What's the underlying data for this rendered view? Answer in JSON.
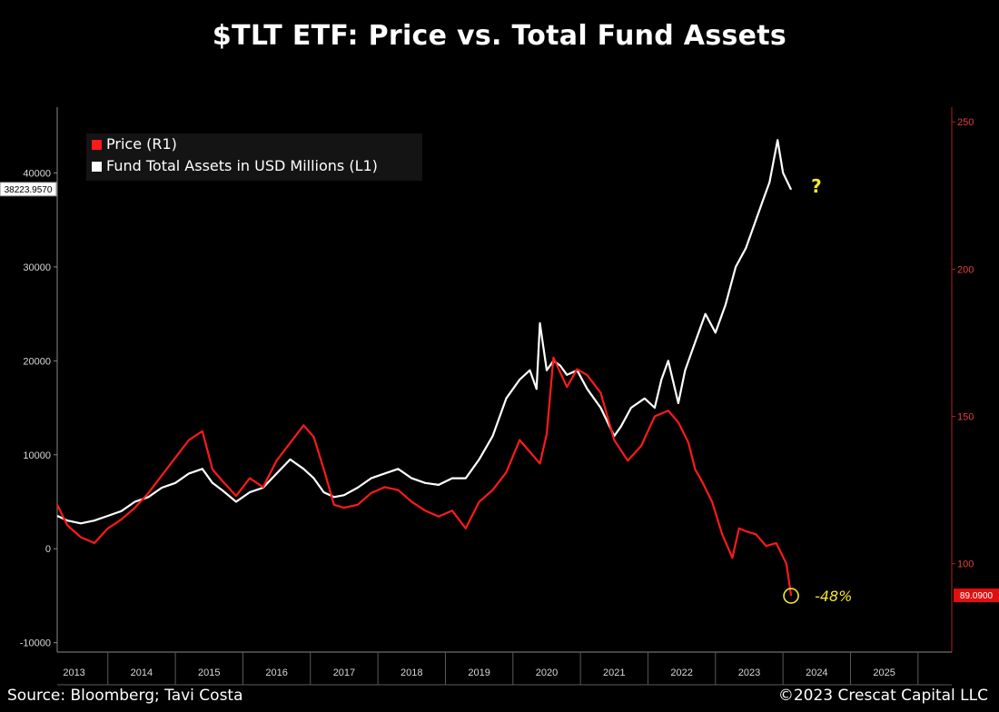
{
  "title": "$TLT ETF:  Price vs. Total Fund Assets",
  "source": "Source: Bloomberg; Tavi Costa",
  "copyright": "©2023 Crescat Capital LLC",
  "colors": {
    "background": "#000000",
    "price": "#ff1a1a",
    "assets": "#ffffff",
    "annotation": "#f2e633",
    "axis_right": "#e03030"
  },
  "chart_data": {
    "type": "line",
    "x_type": "year",
    "xlim": [
      2012.75,
      2026.0
    ],
    "x_ticks": [
      "2013",
      "2014",
      "2015",
      "2016",
      "2017",
      "2018",
      "2019",
      "2020",
      "2021",
      "2022",
      "2023",
      "2024",
      "2025"
    ],
    "grid": false,
    "legend_position": "top-left",
    "y_left": {
      "ylim": [
        -11000,
        47000
      ],
      "ticks": [
        -10000,
        0,
        10000,
        20000,
        30000,
        40000
      ],
      "current_label": "38223.9570"
    },
    "y_right": {
      "ylim": [
        70,
        255
      ],
      "ticks": [
        100,
        150,
        200,
        250
      ],
      "current_label": "89.0900"
    },
    "series": [
      {
        "name": "Price (R1)",
        "axis": "right",
        "color": "#ff1a1a",
        "x": [
          2012.75,
          2012.9,
          2013.1,
          2013.3,
          2013.5,
          2013.7,
          2013.9,
          2014.1,
          2014.3,
          2014.5,
          2014.7,
          2014.9,
          2015.05,
          2015.2,
          2015.4,
          2015.6,
          2015.8,
          2016.0,
          2016.2,
          2016.4,
          2016.55,
          2016.7,
          2016.85,
          2017.0,
          2017.2,
          2017.4,
          2017.6,
          2017.8,
          2018.0,
          2018.2,
          2018.4,
          2018.6,
          2018.8,
          2019.0,
          2019.2,
          2019.4,
          2019.6,
          2019.75,
          2019.9,
          2020.0,
          2020.1,
          2020.2,
          2020.3,
          2020.45,
          2020.6,
          2020.8,
          2021.0,
          2021.2,
          2021.4,
          2021.6,
          2021.8,
          2021.95,
          2022.1,
          2022.2,
          2022.3,
          2022.45,
          2022.6,
          2022.75,
          2022.85,
          2022.95,
          2023.1,
          2023.25,
          2023.4,
          2023.55,
          2023.62
        ],
        "values": [
          120,
          113,
          109,
          107,
          112,
          115,
          119,
          124,
          130,
          136,
          142,
          145,
          132,
          128,
          123,
          129,
          126,
          135,
          141,
          147,
          143,
          132,
          120,
          119,
          120,
          124,
          126,
          125,
          121,
          118,
          116,
          118,
          112,
          121,
          125,
          131,
          142,
          138,
          134,
          144,
          170,
          165,
          160,
          166,
          164,
          158,
          142,
          135,
          140,
          150,
          152,
          148,
          141,
          132,
          128,
          121,
          110,
          102,
          112,
          111,
          110,
          106,
          107,
          100,
          89.09
        ]
      },
      {
        "name": "Fund Total Assets in USD Millions (L1)",
        "axis": "left",
        "color": "#ffffff",
        "x": [
          2012.75,
          2012.9,
          2013.1,
          2013.3,
          2013.5,
          2013.7,
          2013.9,
          2014.1,
          2014.3,
          2014.5,
          2014.7,
          2014.9,
          2015.05,
          2015.2,
          2015.4,
          2015.6,
          2015.8,
          2016.0,
          2016.2,
          2016.4,
          2016.55,
          2016.7,
          2016.85,
          2017.0,
          2017.2,
          2017.4,
          2017.6,
          2017.8,
          2018.0,
          2018.2,
          2018.4,
          2018.6,
          2018.8,
          2019.0,
          2019.2,
          2019.4,
          2019.6,
          2019.75,
          2019.85,
          2019.9,
          2020.0,
          2020.1,
          2020.2,
          2020.3,
          2020.45,
          2020.6,
          2020.8,
          2021.0,
          2021.1,
          2021.25,
          2021.45,
          2021.6,
          2021.7,
          2021.8,
          2021.95,
          2022.05,
          2022.2,
          2022.35,
          2022.5,
          2022.65,
          2022.8,
          2022.95,
          2023.1,
          2023.2,
          2023.3,
          2023.42,
          2023.5,
          2023.62
        ],
        "values": [
          3500,
          3000,
          2700,
          3000,
          3500,
          4000,
          5000,
          5500,
          6500,
          7000,
          8000,
          8500,
          7000,
          6200,
          5000,
          6000,
          6500,
          8000,
          9500,
          8500,
          7500,
          6000,
          5500,
          5700,
          6500,
          7500,
          8000,
          8500,
          7500,
          7000,
          6800,
          7500,
          7500,
          9500,
          12000,
          16000,
          18000,
          19000,
          17000,
          24000,
          19000,
          20000,
          19500,
          18500,
          19000,
          17000,
          15000,
          12000,
          13000,
          15000,
          16000,
          15000,
          18000,
          20000,
          15500,
          19000,
          22000,
          25000,
          23000,
          26000,
          30000,
          32000,
          35000,
          37000,
          39000,
          43500,
          40000,
          38223.957
        ]
      }
    ],
    "annotations": [
      {
        "text": "?",
        "at": "assets-end"
      },
      {
        "text": "-48%",
        "at": "price-end"
      }
    ]
  }
}
